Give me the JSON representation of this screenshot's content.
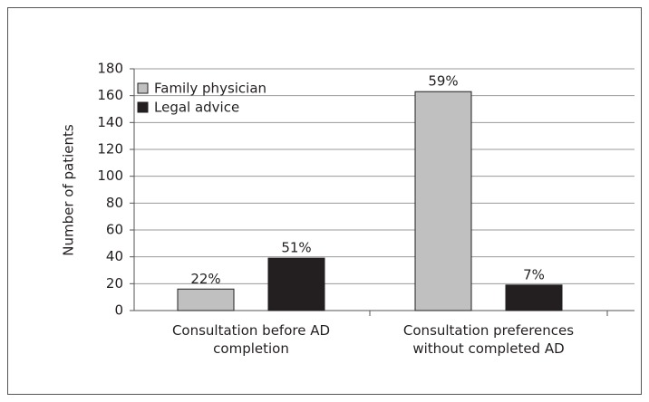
{
  "chart_data": {
    "type": "bar",
    "categories": [
      "Consultation before AD completion",
      "Consultation preferences without completed AD"
    ],
    "series": [
      {
        "name": "Family physician",
        "color": "#c0c0c0",
        "values": [
          16,
          163
        ],
        "percent_labels": [
          "22%",
          "59%"
        ]
      },
      {
        "name": "Legal advice",
        "color": "#231f20",
        "values": [
          39,
          19
        ],
        "percent_labels": [
          "51%",
          "7%"
        ]
      }
    ],
    "ylabel": "Number of patients",
    "ylim": [
      0,
      180
    ],
    "yticks": [
      0,
      20,
      40,
      60,
      80,
      100,
      120,
      140,
      160,
      180
    ],
    "grid": true,
    "legend": "upper left"
  }
}
